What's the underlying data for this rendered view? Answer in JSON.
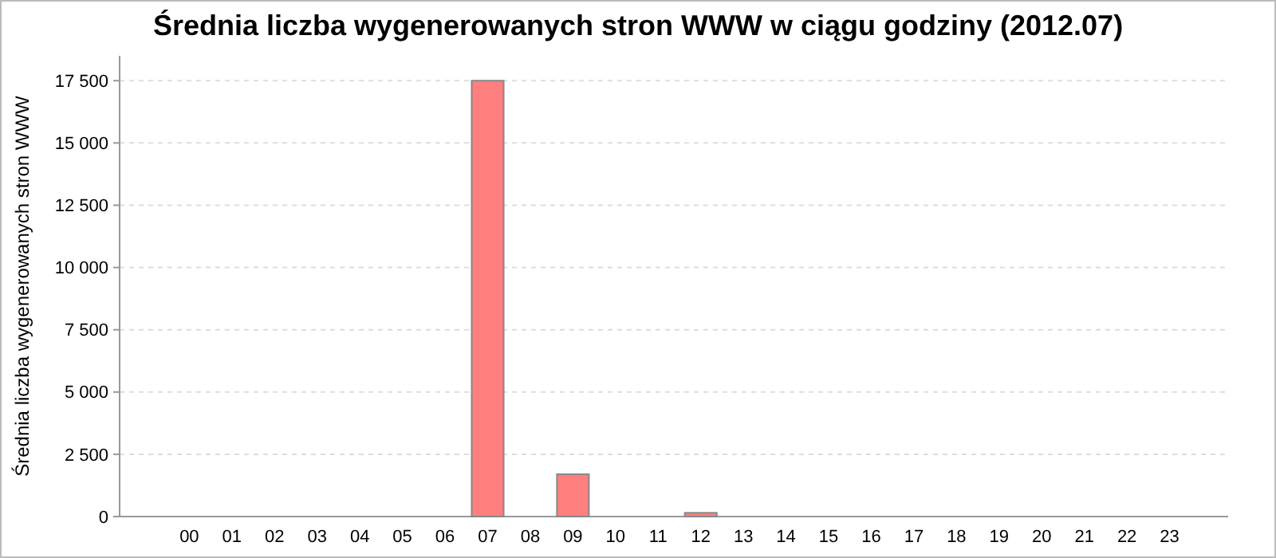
{
  "chart_data": {
    "type": "bar",
    "title": "Średnia liczba wygenerowanych stron WWW w ciągu godziny (2012.07)",
    "ylabel": "Średnia liczba wygenerowanych stron WWW",
    "categories": [
      "00",
      "01",
      "02",
      "03",
      "04",
      "05",
      "06",
      "07",
      "08",
      "09",
      "10",
      "11",
      "12",
      "13",
      "14",
      "15",
      "16",
      "17",
      "18",
      "19",
      "20",
      "21",
      "22",
      "23"
    ],
    "values": [
      0,
      0,
      0,
      0,
      0,
      0,
      0,
      17500,
      0,
      1700,
      0,
      0,
      150,
      0,
      0,
      0,
      0,
      0,
      0,
      0,
      0,
      0,
      0,
      0
    ],
    "color": "#ff7f7f",
    "ylim": [
      0,
      18500
    ],
    "yticks": [
      0,
      {
        "value": 2500,
        "label": "2 500"
      },
      {
        "value": 5000,
        "label": "5 000"
      },
      {
        "value": 7500,
        "label": "7 500"
      },
      {
        "value": 10000,
        "label": "10 000"
      },
      {
        "value": 12500,
        "label": "12 500"
      },
      {
        "value": 15000,
        "label": "15 000"
      },
      {
        "value": 17500,
        "label": "17 500"
      }
    ],
    "grid": "y"
  }
}
